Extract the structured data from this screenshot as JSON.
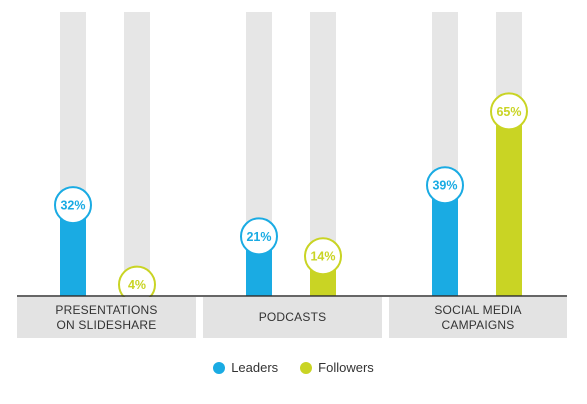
{
  "chart_data": {
    "type": "bar",
    "categories": [
      "PRESENTATIONS\nON SLIDESHARE",
      "PODCASTS",
      "SOCIAL MEDIA\nCAMPAIGNS"
    ],
    "series": [
      {
        "name": "Leaders",
        "values": [
          32,
          21,
          39
        ],
        "labels": [
          "32%",
          "21%",
          "39%"
        ],
        "color": "#1aabe3"
      },
      {
        "name": "Followers",
        "values": [
          4,
          14,
          65
        ],
        "labels": [
          "4%",
          "14%",
          "65%"
        ],
        "color": "#c9d424"
      }
    ],
    "ylim": [
      0,
      100
    ],
    "background_bar_color": "#e6e6e6",
    "legend_position": "bottom-center"
  }
}
